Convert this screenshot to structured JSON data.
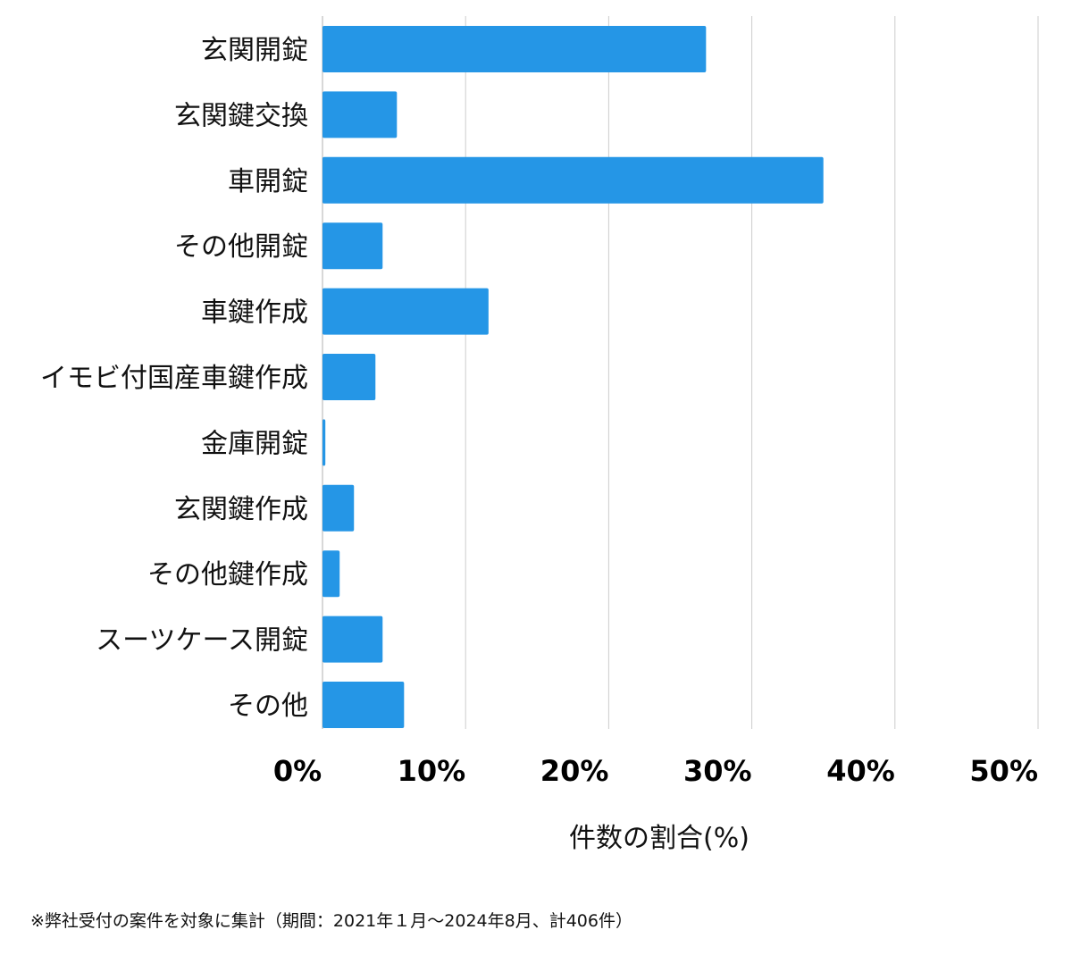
{
  "chart_data": {
    "type": "bar",
    "orientation": "horizontal",
    "categories": [
      "玄関開錠",
      "玄関鍵交換",
      "車開錠",
      "その他開錠",
      "車鍵作成",
      "イモビ付国産車鍵作成",
      "金庫開錠",
      "玄関鍵作成",
      "その他鍵作成",
      "スーツケース開錠",
      "その他"
    ],
    "values": [
      26.8,
      5.2,
      35.0,
      4.2,
      11.6,
      3.7,
      0.2,
      2.2,
      1.2,
      4.2,
      5.7
    ],
    "xlabel": "件数の割合(%)",
    "ylabel": "",
    "xlim": [
      0,
      50
    ],
    "xticks": [
      0,
      10,
      20,
      30,
      40,
      50
    ],
    "xtick_labels": [
      "0%",
      "10%",
      "20%",
      "30%",
      "40%",
      "50%"
    ],
    "grid": true,
    "bar_color": "#2596e6",
    "grid_color": "#cccccc"
  },
  "footnote": "※弊社受付の案件を対象に集計（期間：2021年１月～2024年8月、計406件）"
}
